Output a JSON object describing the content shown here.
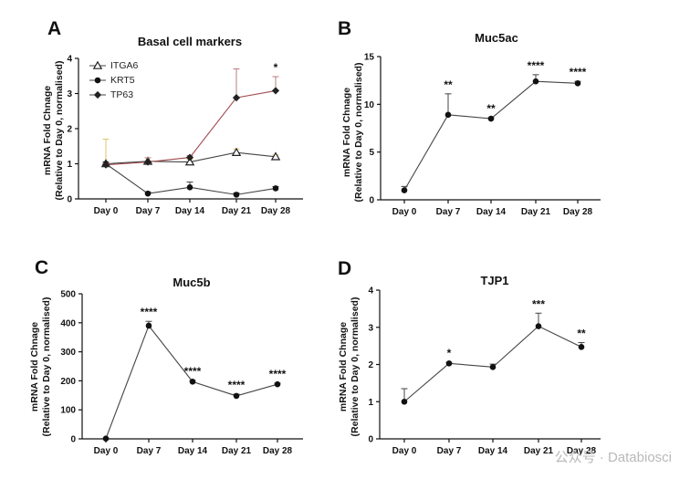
{
  "colors": {
    "line": "#444444",
    "tp63_line": "#a04a4e",
    "tp63_err": "#b87c80",
    "itga6_err": "#e0c66a",
    "axis": "#111111",
    "watermark": "#b9b9b9"
  },
  "watermark": {
    "text": "公众号 · Databiosci"
  },
  "chart_data": [
    {
      "panel": "A",
      "type": "line",
      "title": "Basal cell markers",
      "ylabel_line1": "mRNA Fold Chnage",
      "ylabel_line2": "(Relative to Day 0, normalised)",
      "categories": [
        "Day 0",
        "Day 7",
        "Day 14",
        "Day 21",
        "Day 28"
      ],
      "ylim": [
        0,
        4
      ],
      "yticks": [
        0,
        1,
        2,
        3,
        4
      ],
      "legend_position": "top-left",
      "series": [
        {
          "name": "ITGA6",
          "marker": "triangle",
          "values": [
            1.0,
            1.07,
            1.05,
            1.32,
            1.2
          ],
          "errors": [
            0.7,
            0.1,
            0.08,
            0.1,
            0.05
          ],
          "error_color": "itga6_err"
        },
        {
          "name": "KRT5",
          "marker": "circle",
          "values": [
            1.0,
            0.15,
            0.33,
            0.12,
            0.3
          ],
          "errors": [
            0.05,
            0.05,
            0.15,
            0.05,
            0.05
          ]
        },
        {
          "name": "TP63",
          "marker": "diamond",
          "values": [
            0.97,
            1.05,
            1.18,
            2.88,
            3.08
          ],
          "errors": [
            0.05,
            0.12,
            0.05,
            0.82,
            0.4
          ],
          "line_color": "tp63_line",
          "error_color": "tp63_err"
        }
      ],
      "significance": [
        "",
        "",
        "",
        "",
        "*"
      ]
    },
    {
      "panel": "B",
      "type": "line",
      "title": "Muc5ac",
      "ylabel_line1": "mRNA Fold Chnage",
      "ylabel_line2": "(Relative to Day 0, normalised)",
      "categories": [
        "Day 0",
        "Day 7",
        "Day 14",
        "Day 21",
        "Day 28"
      ],
      "ylim": [
        0,
        15
      ],
      "yticks": [
        0,
        5,
        10,
        15
      ],
      "series": [
        {
          "marker": "circle",
          "values": [
            1.0,
            8.9,
            8.5,
            12.4,
            12.2
          ],
          "errors": [
            0.4,
            2.2,
            0.1,
            0.7,
            0.2
          ]
        }
      ],
      "significance": [
        "",
        "**",
        "**",
        "****",
        "****"
      ]
    },
    {
      "panel": "C",
      "type": "line",
      "title": "Muc5b",
      "ylabel_line1": "mRNA Fold Chnage",
      "ylabel_line2": "(Relative to Day 0, normalised)",
      "categories": [
        "Day 0",
        "Day 7",
        "Day 14",
        "Day 21",
        "Day 28"
      ],
      "ylim": [
        0,
        500
      ],
      "yticks": [
        0,
        100,
        200,
        300,
        400,
        500
      ],
      "series": [
        {
          "marker": "circle",
          "values": [
            1,
            390,
            197,
            148,
            188
          ],
          "errors": [
            1,
            15,
            4,
            6,
            4
          ]
        }
      ],
      "significance": [
        "",
        "****",
        "****",
        "****",
        "****"
      ]
    },
    {
      "panel": "D",
      "type": "line",
      "title": "TJP1",
      "ylabel_line1": "mRNA Fold Chnage",
      "ylabel_line2": "(Relative to Day 0, normalised)",
      "categories": [
        "Day 0",
        "Day 7",
        "Day 14",
        "Day 21",
        "Day 28"
      ],
      "ylim": [
        0,
        4
      ],
      "yticks": [
        0,
        1,
        2,
        3,
        4
      ],
      "series": [
        {
          "marker": "circle",
          "values": [
            1.0,
            2.03,
            1.93,
            3.03,
            2.47
          ],
          "errors": [
            0.35,
            0.03,
            0.08,
            0.35,
            0.12
          ]
        }
      ],
      "significance": [
        "",
        "*",
        "",
        "***",
        "**"
      ]
    }
  ]
}
